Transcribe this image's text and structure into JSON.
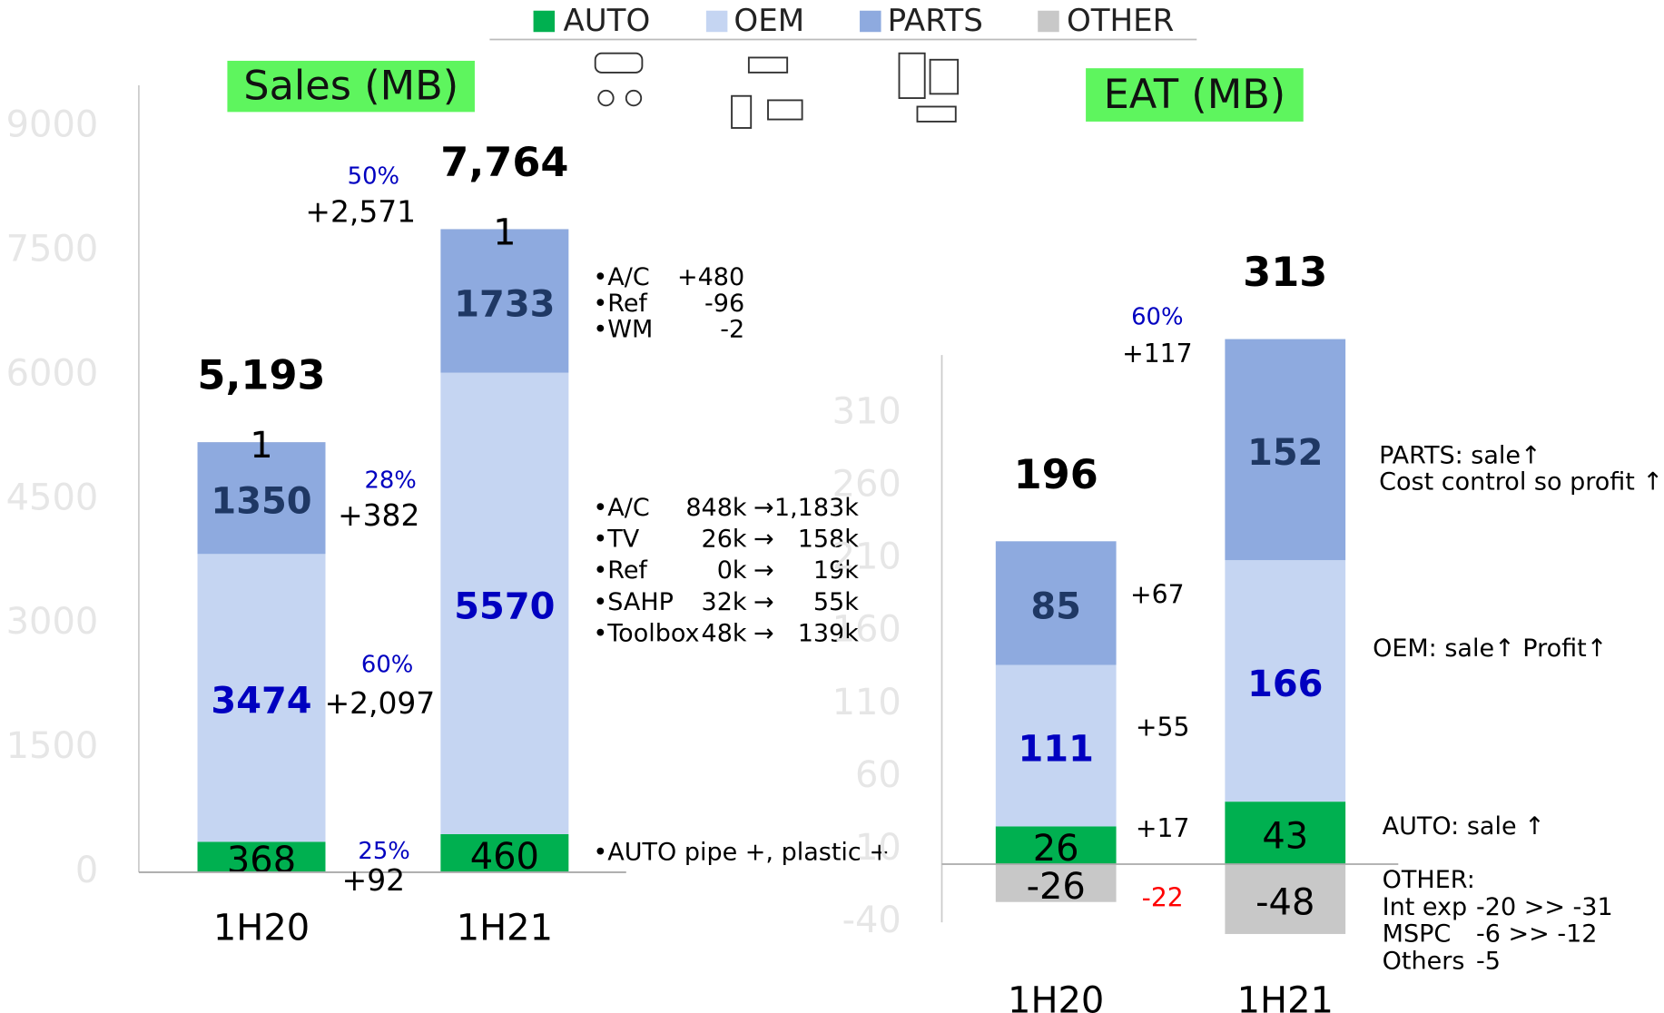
{
  "chart_data": [
    {
      "type": "stacked_bar",
      "title": "Sales (MB)",
      "categories": [
        "1H20",
        "1H21"
      ],
      "series": [
        {
          "name": "AUTO",
          "color": "#00b050",
          "label_color": "#000000",
          "values": [
            368,
            460
          ]
        },
        {
          "name": "OEM",
          "color": "#c5d5f2",
          "label_color": "#0000c0",
          "values": [
            3474,
            5570
          ]
        },
        {
          "name": "PARTS",
          "color": "#8eaadf",
          "label_color": "#1f3864",
          "values": [
            1350,
            1733
          ]
        },
        {
          "name": "OTHER",
          "color": "#c8c8c8",
          "label_color": "#000000",
          "values": [
            1,
            1
          ]
        }
      ],
      "totals": [
        5193,
        7764
      ],
      "total_labels": [
        "5,193",
        "7,764"
      ],
      "ylim": [
        0,
        9500
      ],
      "yticks": [
        0,
        1500,
        3000,
        4500,
        6000,
        7500,
        9000
      ],
      "annotations": [
        {
          "text": "50%",
          "color": "#0000c0"
        },
        {
          "text": "+2,571",
          "color": "#000000"
        },
        {
          "text": "28%",
          "color": "#0000c0"
        },
        {
          "text": "+382",
          "color": "#000000"
        },
        {
          "text": "60%",
          "color": "#0000c0"
        },
        {
          "text": "+2,097",
          "color": "#000000"
        },
        {
          "text": "25%",
          "color": "#0000c0"
        },
        {
          "text": "+92",
          "color": "#000000"
        }
      ],
      "notes": [
        [
          [
            "•A/C",
            "+480"
          ],
          [
            "•Ref",
            "-96"
          ],
          [
            "•WM",
            "-2"
          ]
        ],
        [
          [
            "•A/C",
            "848k",
            "→",
            "1,183k"
          ],
          [
            "•TV",
            "26k",
            "→",
            "158k"
          ],
          [
            "•Ref",
            "0k",
            "→",
            "19k"
          ],
          [
            "•SAHP",
            "32k",
            "→",
            "55k"
          ],
          [
            "•Toolbox",
            "48k",
            "→",
            "139k"
          ]
        ],
        [
          [
            "•AUTO pipe +, plastic +"
          ]
        ]
      ]
    },
    {
      "type": "stacked_bar",
      "title": "EAT (MB)",
      "categories": [
        "1H20",
        "1H21"
      ],
      "series": [
        {
          "name": "AUTO",
          "color": "#00b050",
          "label_color": "#000000",
          "values": [
            26,
            43
          ]
        },
        {
          "name": "OEM",
          "color": "#c5d5f2",
          "label_color": "#0000c0",
          "values": [
            111,
            166
          ]
        },
        {
          "name": "PARTS",
          "color": "#8eaadf",
          "label_color": "#1f3864",
          "values": [
            85,
            152
          ]
        },
        {
          "name": "OTHER",
          "color": "#c8c8c8",
          "label_color": "#000000",
          "values": [
            -26,
            -48
          ]
        }
      ],
      "totals": [
        196,
        313
      ],
      "ylim": [
        -40,
        350
      ],
      "yticks": [
        -40,
        10,
        60,
        110,
        160,
        210,
        260,
        310
      ],
      "annotations": [
        {
          "text": "60%",
          "color": "#0000c0"
        },
        {
          "text": "+117",
          "color": "#000000"
        },
        {
          "text": "+67",
          "color": "#000000"
        },
        {
          "text": "+55",
          "color": "#000000"
        },
        {
          "text": "+17",
          "color": "#000000"
        },
        {
          "text": "-22",
          "color": "#ff0000"
        }
      ],
      "notes": [
        [
          [
            "PARTS: sale↑"
          ],
          [
            "Cost control so profit ↑"
          ]
        ],
        [
          [
            "OEM: sale↑ Profit↑"
          ]
        ],
        [
          [
            "AUTO: sale ↑"
          ]
        ],
        [
          [
            "OTHER:"
          ],
          [
            "Int exp",
            "-20 >> -31"
          ],
          [
            "MSPC",
            "-6 >> -12"
          ],
          [
            "Others",
            "-5"
          ]
        ]
      ]
    }
  ]
}
